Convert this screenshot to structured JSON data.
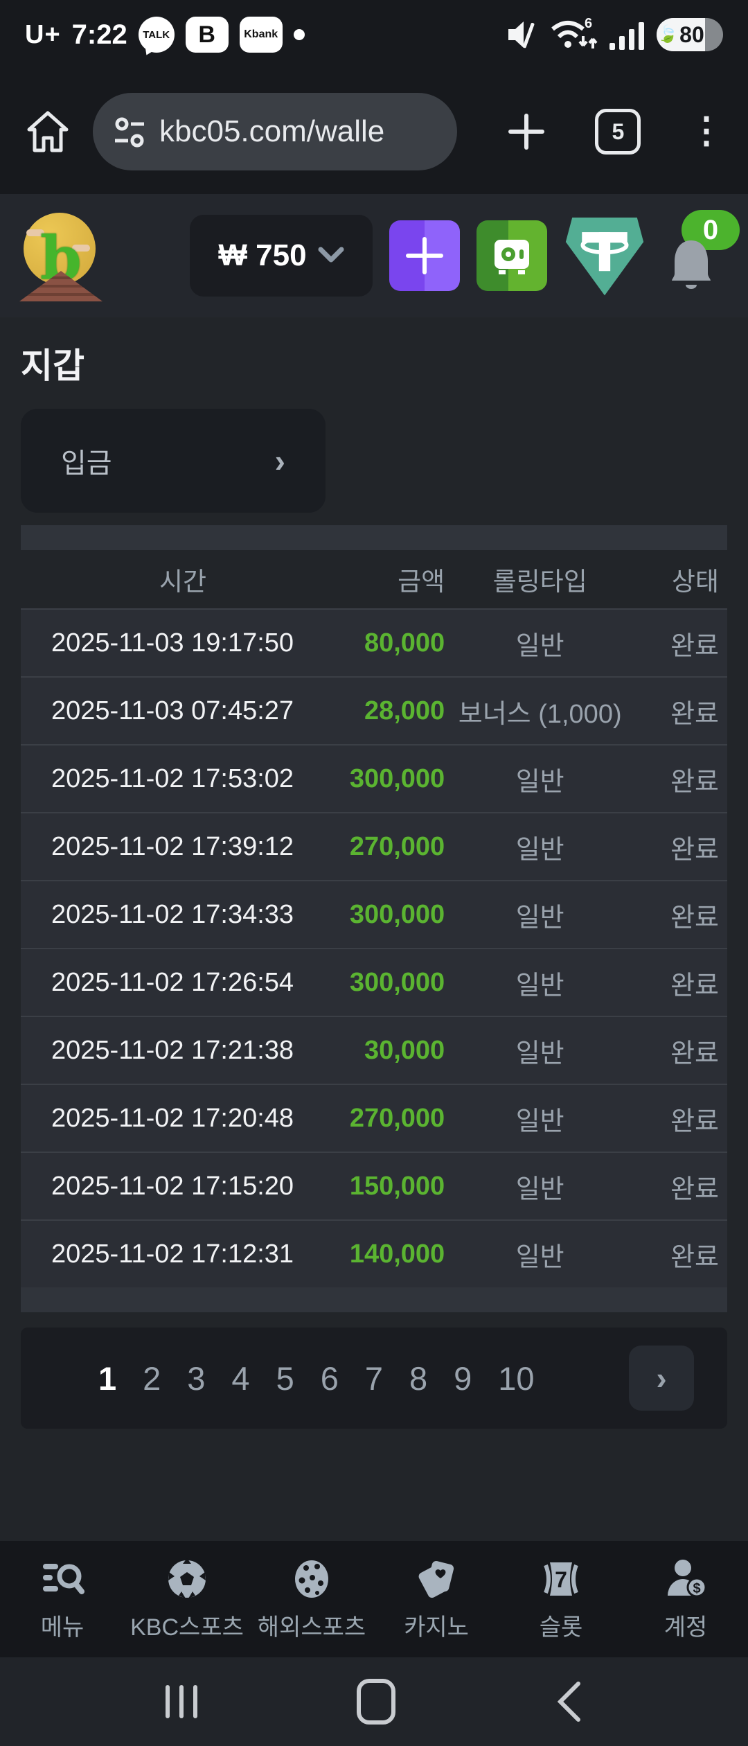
{
  "status_bar": {
    "carrier": "U+",
    "time": "7:22",
    "talk_badge": "TALK",
    "b_badge": "B",
    "kbank_badge": "Kbank",
    "battery_percent": "80"
  },
  "browser": {
    "url": "kbc05.com/walle",
    "tab_count": "5"
  },
  "app_header": {
    "balance": "₩ 750",
    "notification_count": "0"
  },
  "page": {
    "title": "지갑"
  },
  "deposit": {
    "label": "입금",
    "chevron": "›"
  },
  "table": {
    "headers": {
      "time": "시간",
      "amount": "금액",
      "rolling": "롤링타입",
      "status": "상태"
    },
    "rows": [
      {
        "time": "2025-11-03 19:17:50",
        "amount": "80,000",
        "rolling": "일반",
        "status": "완료"
      },
      {
        "time": "2025-11-03 07:45:27",
        "amount": "28,000",
        "rolling": "보너스 (1,000)",
        "status": "완료"
      },
      {
        "time": "2025-11-02 17:53:02",
        "amount": "300,000",
        "rolling": "일반",
        "status": "완료"
      },
      {
        "time": "2025-11-02 17:39:12",
        "amount": "270,000",
        "rolling": "일반",
        "status": "완료"
      },
      {
        "time": "2025-11-02 17:34:33",
        "amount": "300,000",
        "rolling": "일반",
        "status": "완료"
      },
      {
        "time": "2025-11-02 17:26:54",
        "amount": "300,000",
        "rolling": "일반",
        "status": "완료"
      },
      {
        "time": "2025-11-02 17:21:38",
        "amount": "30,000",
        "rolling": "일반",
        "status": "완료"
      },
      {
        "time": "2025-11-02 17:20:48",
        "amount": "270,000",
        "rolling": "일반",
        "status": "완료"
      },
      {
        "time": "2025-11-02 17:15:20",
        "amount": "150,000",
        "rolling": "일반",
        "status": "완료"
      },
      {
        "time": "2025-11-02 17:12:31",
        "amount": "140,000",
        "rolling": "일반",
        "status": "완료"
      }
    ]
  },
  "pagination": {
    "pages": [
      "1",
      "2",
      "3",
      "4",
      "5",
      "6",
      "7",
      "8",
      "9",
      "10"
    ],
    "active": "1",
    "next": "›"
  },
  "bottom_nav": {
    "items": [
      {
        "label": "메뉴"
      },
      {
        "label": "KBC스포츠"
      },
      {
        "label": "해외스포츠"
      },
      {
        "label": "카지노"
      },
      {
        "label": "슬롯"
      },
      {
        "label": "계정"
      }
    ]
  },
  "colors": {
    "amount_green": "#5bb431",
    "badge_green": "#4cb32d",
    "purple_button": "#7a45ee",
    "vault_green": "#63b32f",
    "tether_teal": "#53ae94",
    "page_background": "#222529",
    "row_background": "#2b2e35"
  }
}
